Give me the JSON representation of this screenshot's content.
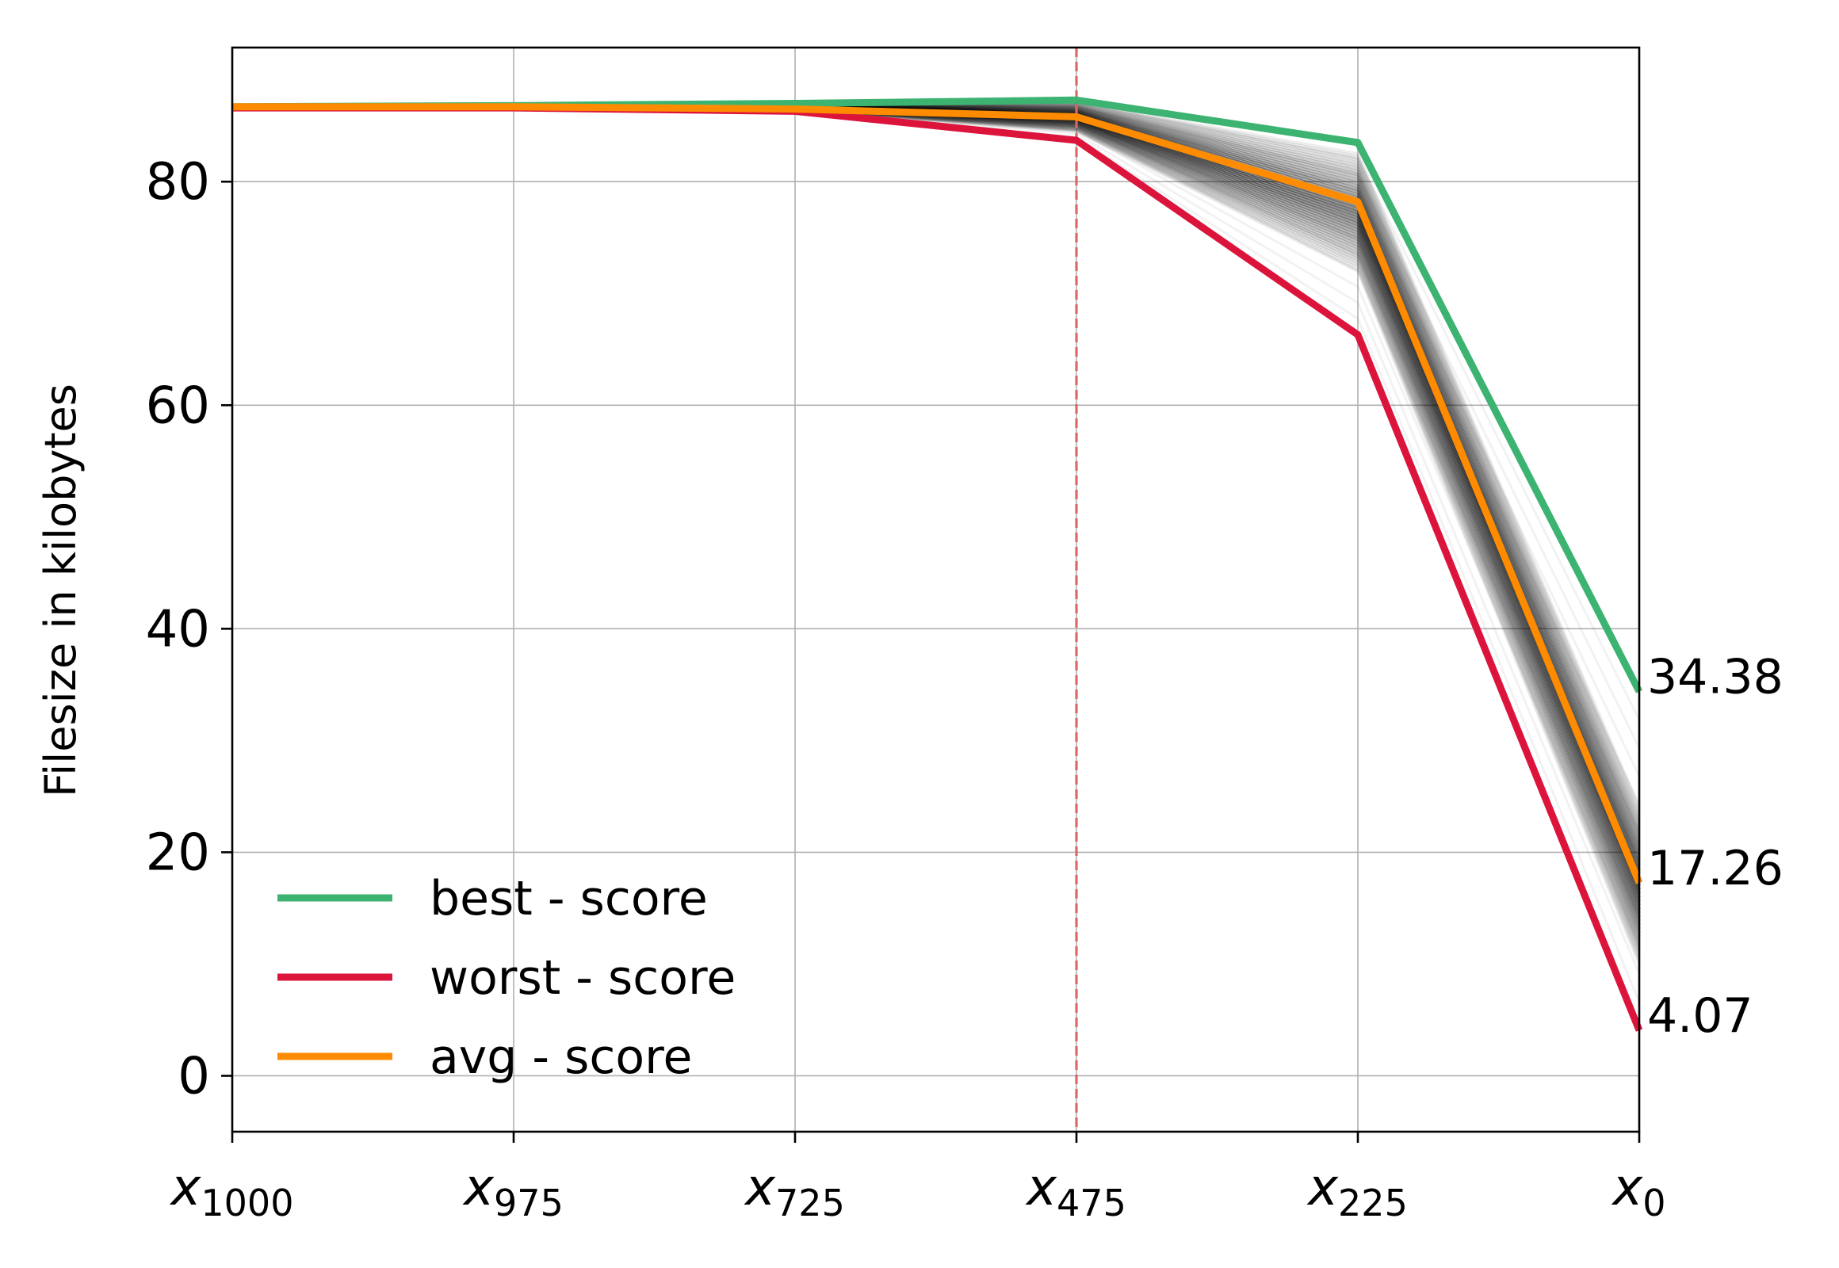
{
  "chart_data": {
    "type": "line",
    "title": "",
    "xlabel": "",
    "ylabel": "Filesize in kilobytes",
    "categories": [
      {
        "main": "x",
        "sub": "1000"
      },
      {
        "main": "x",
        "sub": "975"
      },
      {
        "main": "x",
        "sub": "725"
      },
      {
        "main": "x",
        "sub": "475"
      },
      {
        "main": "x",
        "sub": "225"
      },
      {
        "main": "x",
        "sub": "0"
      }
    ],
    "ylim": [
      -5,
      92
    ],
    "yticks": [
      0,
      20,
      40,
      60,
      80
    ],
    "grid": true,
    "legend_position": "lower-left",
    "vline": {
      "category_index": 3,
      "color": "#e06666",
      "style": "dashed"
    },
    "series": [
      {
        "name": "best - score",
        "color": "#3cb371",
        "values": [
          86.7,
          86.8,
          87.0,
          87.3,
          83.5,
          34.38
        ]
      },
      {
        "name": "worst - score",
        "color": "#dc143c",
        "values": [
          86.6,
          86.6,
          86.3,
          83.7,
          66.3,
          4.07
        ]
      },
      {
        "name": "avg - score",
        "color": "#ff8c00",
        "values": [
          86.7,
          86.7,
          86.5,
          85.8,
          78.2,
          17.26
        ]
      }
    ],
    "end_labels": [
      "34.38",
      "17.26",
      "4.07"
    ],
    "background_band": {
      "color": "#000000",
      "upper": [
        86.7,
        86.8,
        87.0,
        87.1,
        82.5,
        24.0
      ],
      "lower": [
        86.6,
        86.6,
        86.4,
        84.5,
        72.0,
        10.0
      ]
    }
  }
}
